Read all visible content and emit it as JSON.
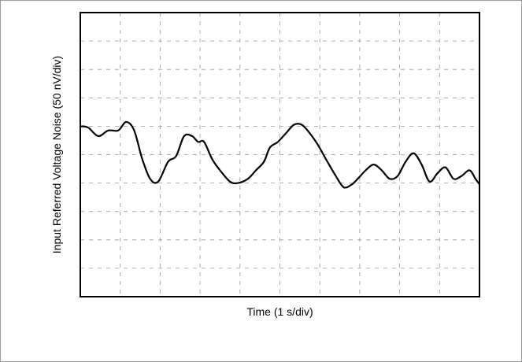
{
  "chart_data": {
    "type": "line",
    "title": "",
    "xlabel": "Time (1 s/div)",
    "ylabel": "Input Referred Voltage Noise (50 nV/div)",
    "x_unit_per_div": "1 s",
    "y_unit_per_div": "50 nV",
    "grid": true,
    "grid_style": "dashed",
    "xlim": [
      0,
      10
    ],
    "ylim": [
      -5,
      5
    ],
    "series": [
      {
        "color": "#000000",
        "x": [
          0.0,
          0.2,
          0.45,
          0.7,
          0.95,
          1.15,
          1.35,
          1.55,
          1.75,
          1.95,
          2.2,
          2.4,
          2.6,
          2.8,
          2.95,
          3.1,
          3.3,
          3.5,
          3.75,
          3.95,
          4.2,
          4.4,
          4.6,
          4.75,
          4.95,
          5.15,
          5.35,
          5.55,
          5.75,
          5.95,
          6.15,
          6.4,
          6.6,
          6.8,
          6.95,
          7.15,
          7.35,
          7.55,
          7.75,
          7.95,
          8.15,
          8.35,
          8.55,
          8.75,
          8.95,
          9.15,
          9.35,
          9.55,
          9.75,
          9.9,
          10.0
        ],
        "values": [
          1.0,
          0.95,
          0.65,
          0.85,
          0.85,
          1.15,
          0.85,
          -0.15,
          -0.85,
          -0.95,
          -0.25,
          -0.05,
          0.65,
          0.65,
          0.45,
          0.45,
          -0.15,
          -0.55,
          -0.95,
          -1.0,
          -0.85,
          -0.55,
          -0.25,
          0.25,
          0.45,
          0.75,
          1.05,
          1.05,
          0.75,
          0.35,
          -0.15,
          -0.75,
          -1.15,
          -1.05,
          -0.85,
          -0.55,
          -0.35,
          -0.55,
          -0.85,
          -0.75,
          -0.25,
          0.05,
          -0.35,
          -0.95,
          -0.65,
          -0.45,
          -0.85,
          -0.75,
          -0.55,
          -0.85,
          -1.05
        ]
      }
    ]
  }
}
